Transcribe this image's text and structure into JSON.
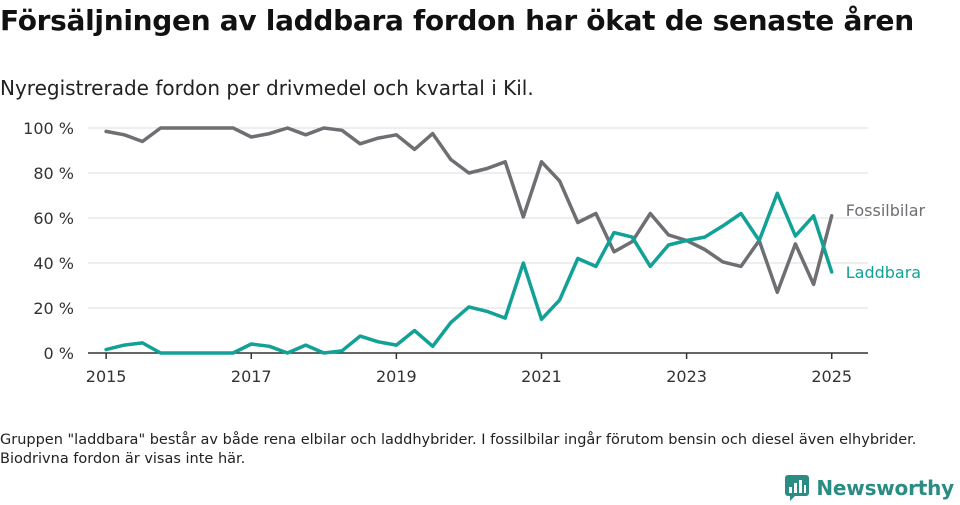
{
  "title": "Försäljningen av laddbara fordon har ökat de senaste åren",
  "subtitle": "Nyregistrerade fordon per drivmedel och kvartal i Kil.",
  "note": "Gruppen \"laddbara\" består av både rena elbilar och laddhybrider. I fossilbilar ingår förutom bensin och diesel även elhybrider. Biodrivna fordon är visas inte här.",
  "brand": {
    "name": "Newsworthy",
    "icon": "newsworthy-logo-icon",
    "color": "#2a8c82"
  },
  "chart_data": {
    "type": "line",
    "title": "Försäljningen av laddbara fordon har ökat de senaste åren",
    "subtitle": "Nyregistrerade fordon per drivmedel och kvartal i Kil.",
    "xlabel": "",
    "ylabel": "",
    "x": [
      2015.0,
      2015.25,
      2015.5,
      2015.75,
      2016.0,
      2016.25,
      2016.5,
      2016.75,
      2017.0,
      2017.25,
      2017.5,
      2017.75,
      2018.0,
      2018.25,
      2018.5,
      2018.75,
      2019.0,
      2019.25,
      2019.5,
      2019.75,
      2020.0,
      2020.25,
      2020.5,
      2020.75,
      2021.0,
      2021.25,
      2021.5,
      2021.75,
      2022.0,
      2022.25,
      2022.5,
      2022.75,
      2023.0,
      2023.25,
      2023.5,
      2023.75,
      2024.0,
      2024.25,
      2024.5,
      2024.75,
      2025.0
    ],
    "xlim": [
      2014.75,
      2025.5
    ],
    "ylim": [
      0,
      100
    ],
    "xticks": [
      2015,
      2017,
      2019,
      2021,
      2023,
      2025
    ],
    "xtick_labels": [
      "2015",
      "2017",
      "2019",
      "2021",
      "2023",
      "2025"
    ],
    "yticks": [
      0,
      20,
      40,
      60,
      80,
      100
    ],
    "ytick_labels": [
      "0 %",
      "20 %",
      "40 %",
      "60 %",
      "80 %",
      "100 %"
    ],
    "grid": "horizontal",
    "legend": "direct labels at line ends",
    "series": [
      {
        "name": "Fossilbilar",
        "color": "#6e6e73",
        "values": [
          98.5,
          97,
          94,
          100,
          100,
          100,
          100,
          100,
          96,
          97.5,
          100,
          97,
          100,
          99,
          93,
          95.5,
          97,
          90.5,
          97.5,
          86,
          80,
          82,
          85,
          60.5,
          85,
          76.5,
          58,
          62,
          45,
          49.5,
          62,
          52.5,
          50,
          46,
          40.5,
          38.5,
          50,
          27,
          48.5,
          30.5,
          61
        ]
      },
      {
        "name": "Laddbara",
        "color": "#12a197",
        "values": [
          1.5,
          3.5,
          4.5,
          0,
          0,
          0,
          0,
          0,
          4,
          3,
          0,
          3.5,
          0,
          1,
          7.5,
          5,
          3.5,
          10,
          3,
          13.5,
          20.5,
          18.5,
          15.5,
          40,
          15,
          23.5,
          42,
          38.5,
          53.5,
          51.5,
          38.5,
          48,
          50,
          51.5,
          56.5,
          62,
          50,
          71,
          52,
          61,
          36
        ]
      }
    ]
  }
}
